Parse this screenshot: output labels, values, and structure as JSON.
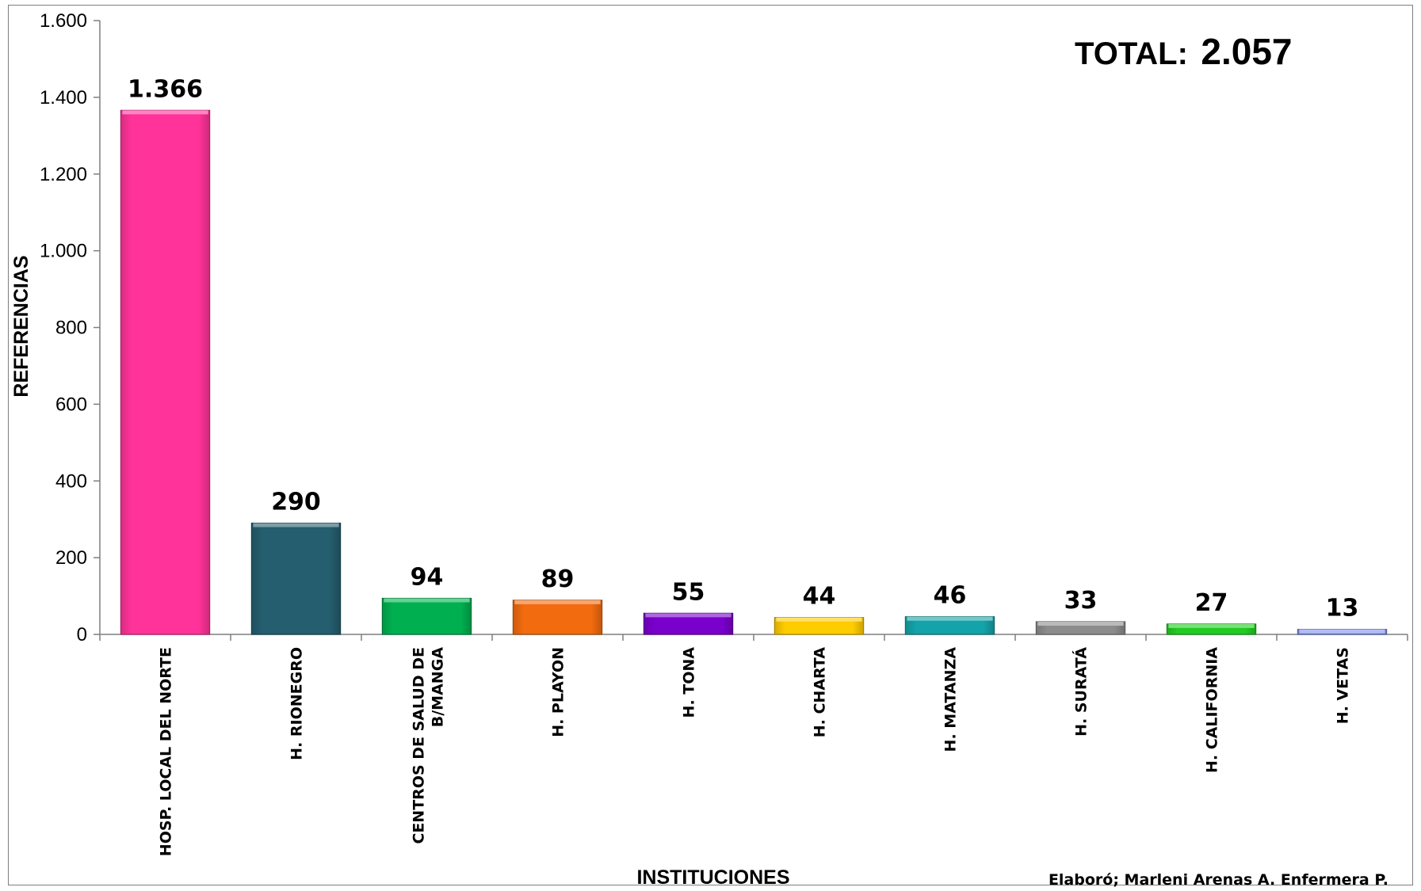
{
  "chart_data": {
    "type": "bar",
    "categories": [
      "HOSP.  LOCAL DEL NORTE",
      "H. RIONEGRO",
      "CENTROS DE SALUD DE B/MANGA",
      "H. PLAYON",
      "H. TONA",
      "H. CHARTA",
      "H. MATANZA",
      "H. SURATÁ",
      "H. CALIFORNIA",
      "H. VETAS"
    ],
    "values": [
      1366,
      290,
      94,
      89,
      55,
      44,
      46,
      33,
      27,
      13
    ],
    "data_labels": [
      "1.366",
      "290",
      "94",
      "89",
      "55",
      "44",
      "46",
      "33",
      "27",
      "13"
    ],
    "colors": [
      "#ff3399",
      "#255e6e",
      "#00b050",
      "#f26b0f",
      "#7a00cc",
      "#ffcc00",
      "#14a3a8",
      "#8c8c8c",
      "#22cc22",
      "#7f8fef"
    ],
    "xlabel": "INSTITUCIONES",
    "ylabel": "REFERENCIAS",
    "ylim": [
      0,
      1600
    ],
    "yticks": [
      0,
      200,
      400,
      600,
      800,
      1000,
      1200,
      1400,
      1600
    ],
    "ytick_labels": [
      "0",
      "200",
      "400",
      "600",
      "800",
      "1.000",
      "1.200",
      "1.400",
      "1.600"
    ],
    "grid": false,
    "legend": "none"
  },
  "annotations": {
    "total_label": "TOTAL:",
    "total_value": "2.057",
    "credit": "Elaboró; Marleni Arenas A. Enfermera P."
  }
}
